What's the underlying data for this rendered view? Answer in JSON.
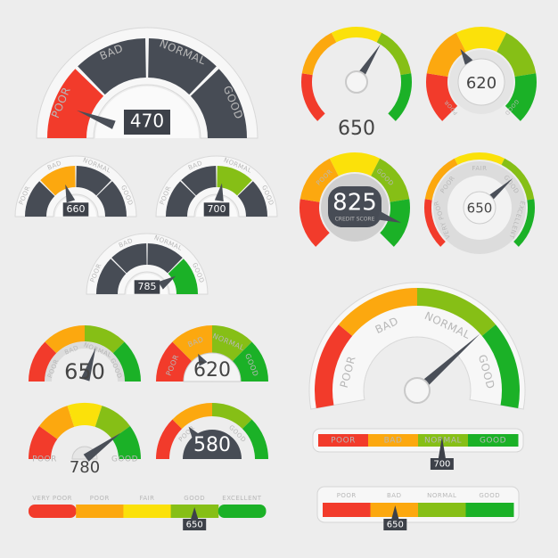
{
  "colors": {
    "red": "#f23b2b",
    "orange": "#fca80f",
    "yellow": "#fbe10a",
    "lightgreen": "#86bf16",
    "green": "#1bb127",
    "dark": "#474c55",
    "rim": "#f7f7f7",
    "needle": "#4a4f58"
  },
  "gauges": [
    {
      "id": "g470",
      "value": "470",
      "labels": [
        "POOR",
        "BAD",
        "NORMAL",
        "GOOD"
      ],
      "segments": [
        "red",
        "dark",
        "dark",
        "dark"
      ],
      "needle": 0.12
    },
    {
      "id": "g660",
      "value": "660",
      "labels": [
        "POOR",
        "BAD",
        "NORMAL",
        "GOOD"
      ],
      "segments": [
        "dark",
        "orange",
        "dark",
        "dark"
      ],
      "needle": 0.4
    },
    {
      "id": "g700",
      "value": "700",
      "labels": [
        "POOR",
        "BAD",
        "NORMAL",
        "GOOD"
      ],
      "segments": [
        "dark",
        "dark",
        "lightgreen",
        "dark"
      ],
      "needle": 0.55
    },
    {
      "id": "g785",
      "value": "785",
      "labels": [
        "POOR",
        "BAD",
        "NORMAL",
        "GOOD"
      ],
      "segments": [
        "dark",
        "dark",
        "dark",
        "green"
      ],
      "needle": 0.82
    },
    {
      "id": "g650a",
      "value": "650",
      "labels": [],
      "segments": [
        "red",
        "orange",
        "yellow",
        "lightgreen",
        "green"
      ],
      "needle": 0.62
    },
    {
      "id": "g620a",
      "value": "620",
      "labels": [
        "POOR",
        "GOOD"
      ],
      "segments": [
        "red",
        "orange",
        "yellow",
        "lightgreen",
        "green"
      ],
      "needle": 0.38
    },
    {
      "id": "g825",
      "value": "825",
      "caption": "CREDIT SCORE",
      "labels": [
        "POOR",
        "GOOD"
      ],
      "segments": [
        "red",
        "orange",
        "yellow",
        "lightgreen",
        "green"
      ],
      "needle": 0.9
    },
    {
      "id": "g650b",
      "value": "650",
      "labels": [
        "VERY POOR",
        "POOR",
        "FAIR",
        "GOOD",
        "EXCELLENT"
      ],
      "segments": [
        "red",
        "orange",
        "yellow",
        "lightgreen",
        "green"
      ],
      "needle": 0.68
    },
    {
      "id": "gbig",
      "value": "",
      "labels": [
        "POOR",
        "BAD",
        "NORMAL",
        "GOOD"
      ],
      "segments": [
        "red",
        "orange",
        "lightgreen",
        "green"
      ],
      "needle": 0.74
    },
    {
      "id": "g650c",
      "value": "650",
      "labels": [
        "POOR",
        "BAD",
        "NORMAL",
        "GOOD"
      ],
      "segments": [
        "red",
        "orange",
        "lightgreen",
        "green"
      ],
      "needle": 0.6
    },
    {
      "id": "g620b",
      "value": "620",
      "labels": [
        "POOR",
        "BAD",
        "NORMAL",
        "GOOD"
      ],
      "segments": [
        "red",
        "orange",
        "lightgreen",
        "green"
      ],
      "needle": 0.35
    },
    {
      "id": "g780",
      "value": "780",
      "labels": [
        "POOR",
        "GOOD"
      ],
      "segments": [
        "red",
        "orange",
        "yellow",
        "lightgreen",
        "green"
      ],
      "needle": 0.8
    },
    {
      "id": "g580",
      "value": "580",
      "labels": [
        "POOR",
        "GOOD"
      ],
      "segments": [
        "red",
        "orange",
        "lightgreen",
        "green"
      ],
      "needle": 0.3
    }
  ],
  "bars": [
    {
      "id": "bar700",
      "value": "700",
      "labels": [
        "POOR",
        "BAD",
        "NORMAL",
        "GOOD"
      ],
      "segments": [
        "red",
        "orange",
        "lightgreen",
        "green"
      ],
      "marker": 0.62
    },
    {
      "id": "bar650a",
      "value": "650",
      "labels": [
        "VERY POOR",
        "POOR",
        "FAIR",
        "GOOD",
        "EXCELLENT"
      ],
      "segments": [
        "red",
        "orange",
        "yellow",
        "lightgreen",
        "green"
      ],
      "marker": 0.7
    },
    {
      "id": "bar650b",
      "value": "650",
      "labels": [
        "POOR",
        "BAD",
        "NORMAL",
        "GOOD"
      ],
      "segments": [
        "red",
        "orange",
        "lightgreen",
        "green"
      ],
      "marker": 0.38
    }
  ]
}
